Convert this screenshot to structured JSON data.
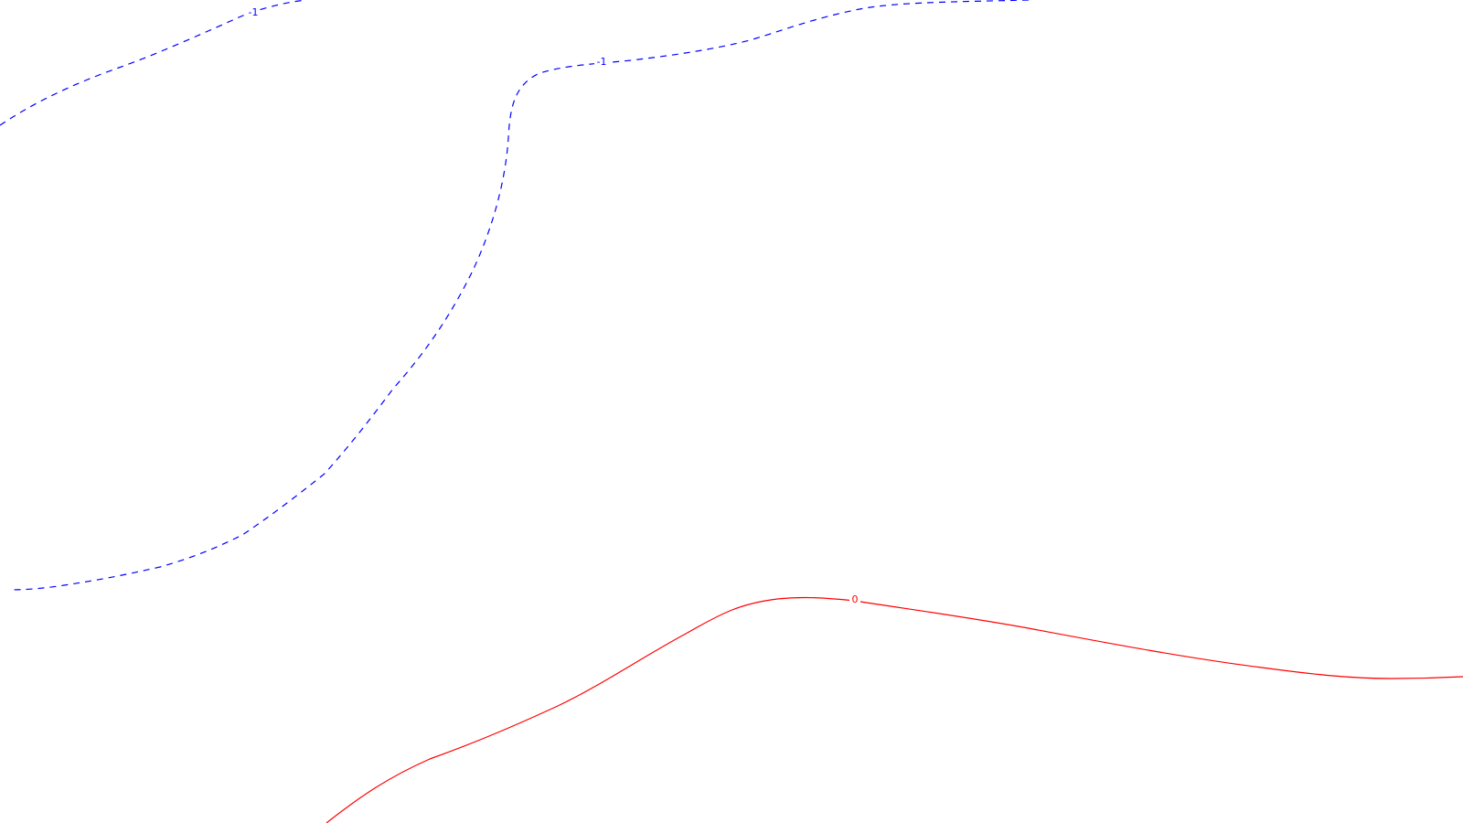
{
  "map": {
    "background": "#ffffff",
    "contours": [
      {
        "level": -1,
        "style": "dashed",
        "color": "#0000ff",
        "labels": [
          "-1",
          "-1"
        ]
      },
      {
        "level": 0,
        "style": "solid",
        "color": "#ff0000",
        "labels": [
          "0"
        ]
      }
    ]
  }
}
